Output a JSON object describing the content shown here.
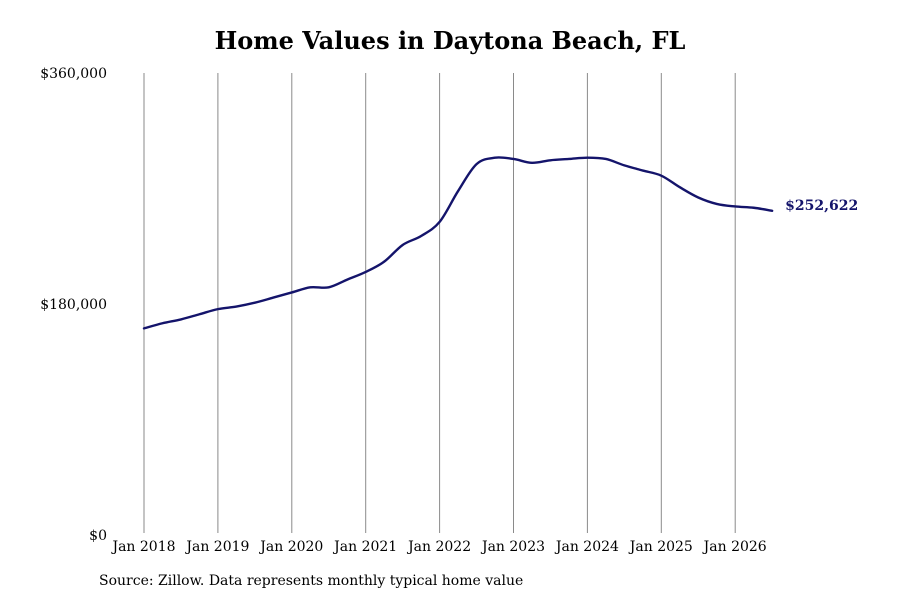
{
  "chart_data": {
    "type": "line",
    "title": "Home Values in Daytona Beach, FL",
    "source": "Source: Zillow. Data represents monthly typical home value",
    "y_ticks": [
      "$360,000",
      "$180,000",
      "$0"
    ],
    "y_tick_values": [
      360000,
      180000,
      0
    ],
    "ylim": [
      0,
      360000
    ],
    "x_ticks": [
      "Jan 2018",
      "Jan 2019",
      "Jan 2020",
      "Jan 2021",
      "Jan 2022",
      "Jan 2023",
      "Jan 2024",
      "Jan 2025",
      "Jan 2026"
    ],
    "grid": "vertical",
    "line_color": "#14146b",
    "end_value_label": "$252,622",
    "series": [
      {
        "x": [
          "2018-01",
          "2018-04",
          "2018-07",
          "2018-10",
          "2019-01",
          "2019-04",
          "2019-07",
          "2019-10",
          "2020-01",
          "2020-04",
          "2020-07",
          "2020-10",
          "2021-01",
          "2021-04",
          "2021-07",
          "2021-10",
          "2022-01",
          "2022-04",
          "2022-07",
          "2022-10",
          "2023-01",
          "2023-04",
          "2023-07",
          "2023-10",
          "2024-01",
          "2024-04",
          "2024-07",
          "2024-10",
          "2025-01",
          "2025-04",
          "2025-07",
          "2025-10",
          "2026-01",
          "2026-04",
          "2026-07"
        ],
        "values": [
          161000,
          165000,
          168000,
          172000,
          176000,
          178000,
          181000,
          185000,
          189000,
          193000,
          193000,
          199000,
          205000,
          213000,
          226000,
          233000,
          244000,
          268000,
          289000,
          294000,
          293000,
          290000,
          292000,
          293000,
          294000,
          293000,
          288000,
          284000,
          280000,
          271000,
          263000,
          258000,
          256000,
          255000,
          252622
        ]
      }
    ]
  }
}
